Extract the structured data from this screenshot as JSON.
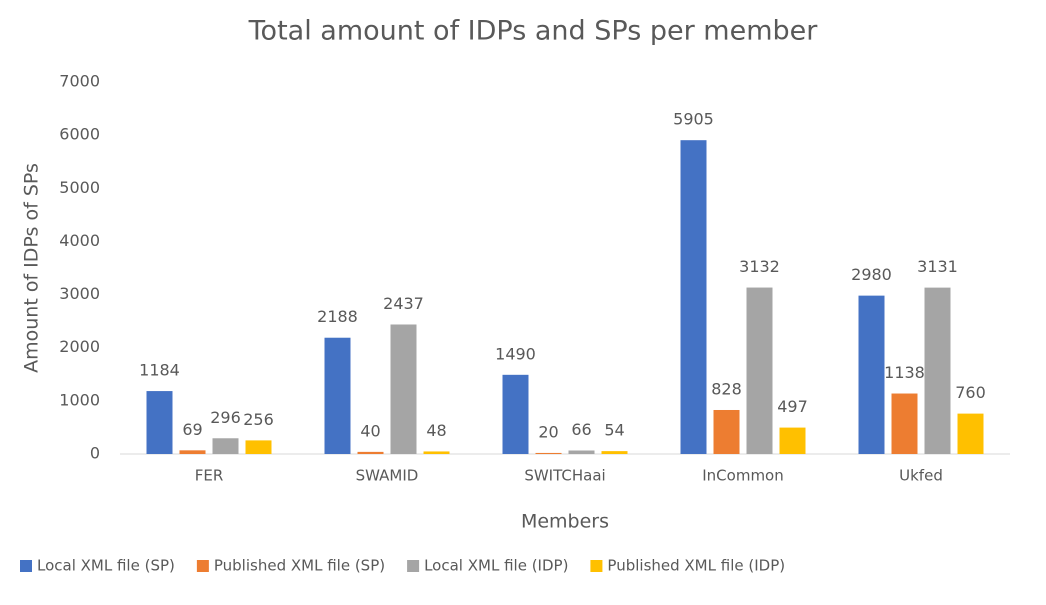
{
  "chart_data": {
    "type": "bar",
    "title": "Total amount of IDPs and SPs per member",
    "x_label": "Members",
    "y_label": "Amount of IDPs of SPs",
    "categories": [
      "FER",
      "SWAMID",
      "SWITCHaai",
      "InCommon",
      "Ukfed"
    ],
    "series": [
      {
        "name": "Local XML file (SP)",
        "color": "#4472c4",
        "values": [
          1184,
          2188,
          1490,
          5905,
          2980
        ]
      },
      {
        "name": "Published XML file (SP)",
        "color": "#ed7d31",
        "values": [
          69,
          40,
          20,
          828,
          1138
        ]
      },
      {
        "name": "Local XML file (IDP)",
        "color": "#a5a5a5",
        "values": [
          296,
          2437,
          66,
          3132,
          3131
        ]
      },
      {
        "name": "Published XML file (IDP)",
        "color": "#ffc000",
        "values": [
          256,
          48,
          54,
          497,
          760
        ]
      }
    ],
    "ylim": [
      0,
      7000
    ],
    "yticks": [
      0,
      1000,
      2000,
      3000,
      4000,
      5000,
      6000,
      7000
    ],
    "grid": false,
    "legend": "bottom"
  }
}
